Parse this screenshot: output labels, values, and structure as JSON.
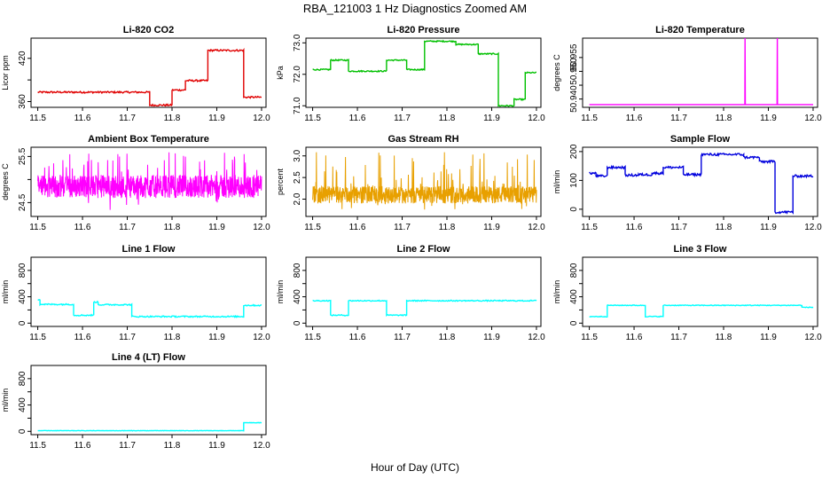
{
  "figure": {
    "title": "RBA_121003  1 Hz Diagnostics Zoomed AM",
    "xlabel": "Hour of Day (UTC)"
  },
  "chart_data": [
    {
      "id": "co2",
      "type": "line",
      "title": "Li-820 CO2",
      "ylabel": "Licor ppm",
      "color": "#e00000",
      "xlim": [
        11.485,
        12.01
      ],
      "ylim": [
        352,
        448
      ],
      "x_ticks": [
        11.5,
        11.6,
        11.7,
        11.8,
        11.9,
        12.0
      ],
      "x_tick_labels": [
        "11.5",
        "11.6",
        "11.7",
        "11.8",
        "11.9",
        "12.0"
      ],
      "y_ticks": [
        360,
        390,
        420
      ],
      "y_tick_labels": [
        "360",
        "",
        "420"
      ],
      "noise": 1.2,
      "segments": [
        [
          11.5,
          11.75,
          373
        ],
        [
          11.75,
          11.8,
          355
        ],
        [
          11.8,
          11.83,
          376
        ],
        [
          11.83,
          11.88,
          389
        ],
        [
          11.88,
          11.96,
          431
        ],
        [
          11.96,
          12.0,
          366
        ]
      ]
    },
    {
      "id": "pressure",
      "type": "line",
      "title": "Li-820 Pressure",
      "ylabel": "kPa",
      "color": "#00c000",
      "xlim": [
        11.485,
        12.01
      ],
      "ylim": [
        70.95,
        73.15
      ],
      "x_ticks": [
        11.5,
        11.6,
        11.7,
        11.8,
        11.9,
        12.0
      ],
      "x_tick_labels": [
        "11.5",
        "11.6",
        "11.7",
        "11.8",
        "11.9",
        "12.0"
      ],
      "y_ticks": [
        71.0,
        72.0,
        73.0
      ],
      "y_tick_labels": [
        "71.0",
        "72.0",
        "73.0"
      ],
      "noise": 0.02,
      "segments": [
        [
          11.5,
          11.54,
          72.15
        ],
        [
          11.54,
          11.58,
          72.45
        ],
        [
          11.58,
          11.665,
          72.1
        ],
        [
          11.665,
          11.71,
          72.45
        ],
        [
          11.71,
          11.75,
          72.15
        ],
        [
          11.75,
          11.82,
          73.05
        ],
        [
          11.82,
          11.87,
          72.95
        ],
        [
          11.87,
          11.915,
          72.65
        ],
        [
          11.915,
          11.95,
          71.0
        ],
        [
          11.95,
          11.975,
          71.2
        ],
        [
          11.975,
          12.0,
          72.05
        ]
      ]
    },
    {
      "id": "licor_temp",
      "type": "line",
      "title": "Li-820 Temperature",
      "ylabel": "degrees C",
      "color": "#ff00ff",
      "xlim": [
        11.485,
        12.01
      ],
      "ylim": [
        50.937,
        50.962
      ],
      "x_ticks": [
        11.5,
        11.6,
        11.7,
        11.8,
        11.9,
        12.0
      ],
      "x_tick_labels": [
        "11.5",
        "11.6",
        "11.7",
        "11.8",
        "11.9",
        "12.0"
      ],
      "y_ticks": [
        50.94,
        50.945,
        50.95,
        50.955
      ],
      "y_tick_labels": [
        "50.940",
        "",
        "50.950",
        "50.955"
      ],
      "baseline": 50.938,
      "spikes": [
        11.848,
        11.92
      ],
      "spike_top": 50.962
    },
    {
      "id": "box_temp",
      "type": "line",
      "title": "Ambient Box Temperature",
      "ylabel": "degrees C",
      "color": "#ff00ff",
      "xlim": [
        11.485,
        12.01
      ],
      "ylim": [
        24.2,
        25.7
      ],
      "x_ticks": [
        11.5,
        11.6,
        11.7,
        11.8,
        11.9,
        12.0
      ],
      "x_tick_labels": [
        "11.5",
        "11.6",
        "11.7",
        "11.8",
        "11.9",
        "12.0"
      ],
      "y_ticks": [
        24.5,
        25.0,
        25.5
      ],
      "y_tick_labels": [
        "24.5",
        "",
        "25.5"
      ],
      "noisy": {
        "center": 24.85,
        "spread": 0.25,
        "max": 25.6,
        "min": 24.3
      }
    },
    {
      "id": "rh",
      "type": "line",
      "title": "Gas Stream RH",
      "ylabel": "percent",
      "color": "#e8a000",
      "xlim": [
        11.485,
        12.01
      ],
      "ylim": [
        1.6,
        3.2
      ],
      "x_ticks": [
        11.5,
        11.6,
        11.7,
        11.8,
        11.9,
        12.0
      ],
      "x_tick_labels": [
        "11.5",
        "11.6",
        "11.7",
        "11.8",
        "11.9",
        "12.0"
      ],
      "y_ticks": [
        2.0,
        2.5,
        3.0
      ],
      "y_tick_labels": [
        "2.0",
        "2.5",
        "3.0"
      ],
      "noisy": {
        "center": 2.1,
        "spread": 0.2,
        "max": 3.1,
        "min": 1.75
      }
    },
    {
      "id": "sample_flow",
      "type": "line",
      "title": "Sample Flow",
      "ylabel": "ml/min",
      "color": "#0000dd",
      "xlim": [
        11.485,
        12.01
      ],
      "ylim": [
        -25,
        215
      ],
      "x_ticks": [
        11.5,
        11.6,
        11.7,
        11.8,
        11.9,
        12.0
      ],
      "x_tick_labels": [
        "11.5",
        "11.6",
        "11.7",
        "11.8",
        "11.9",
        "12.0"
      ],
      "y_ticks": [
        0,
        100,
        200
      ],
      "y_tick_labels": [
        "0",
        "100",
        "200"
      ],
      "noise": 4,
      "segments": [
        [
          11.5,
          11.515,
          125
        ],
        [
          11.515,
          11.54,
          115
        ],
        [
          11.54,
          11.58,
          145
        ],
        [
          11.58,
          11.61,
          118
        ],
        [
          11.61,
          11.64,
          120
        ],
        [
          11.64,
          11.665,
          125
        ],
        [
          11.665,
          11.71,
          145
        ],
        [
          11.71,
          11.75,
          120
        ],
        [
          11.75,
          11.845,
          190
        ],
        [
          11.845,
          11.88,
          180
        ],
        [
          11.88,
          11.915,
          165
        ],
        [
          11.915,
          11.955,
          -10
        ],
        [
          11.955,
          12.0,
          115
        ]
      ]
    },
    {
      "id": "line1",
      "type": "line",
      "title": "Line 1 Flow",
      "ylabel": "ml/min",
      "color": "#00ffff",
      "xlim": [
        11.485,
        12.01
      ],
      "ylim": [
        -50,
        1000
      ],
      "x_ticks": [
        11.5,
        11.6,
        11.7,
        11.8,
        11.9,
        12.0
      ],
      "x_tick_labels": [
        "11.5",
        "11.6",
        "11.7",
        "11.8",
        "11.9",
        "12.0"
      ],
      "y_ticks": [
        0,
        200,
        400,
        600,
        800
      ],
      "y_tick_labels": [
        "0",
        "",
        "400",
        "",
        "800"
      ],
      "noise": 10,
      "segments": [
        [
          11.5,
          11.505,
          360
        ],
        [
          11.505,
          11.58,
          285
        ],
        [
          11.58,
          11.625,
          120
        ],
        [
          11.625,
          11.635,
          320
        ],
        [
          11.635,
          11.71,
          280
        ],
        [
          11.71,
          11.96,
          100
        ],
        [
          11.96,
          12.0,
          270
        ]
      ]
    },
    {
      "id": "line2",
      "type": "line",
      "title": "Line 2 Flow",
      "ylabel": "ml/min",
      "color": "#00ffff",
      "xlim": [
        11.485,
        12.01
      ],
      "ylim": [
        -50,
        1000
      ],
      "x_ticks": [
        11.5,
        11.6,
        11.7,
        11.8,
        11.9,
        12.0
      ],
      "x_tick_labels": [
        "11.5",
        "11.6",
        "11.7",
        "11.8",
        "11.9",
        "12.0"
      ],
      "y_ticks": [
        0,
        200,
        400,
        600,
        800
      ],
      "y_tick_labels": [
        "0",
        "",
        "400",
        "",
        "800"
      ],
      "noise": 8,
      "segments": [
        [
          11.5,
          11.54,
          340
        ],
        [
          11.54,
          11.58,
          120
        ],
        [
          11.58,
          11.665,
          340
        ],
        [
          11.665,
          11.71,
          120
        ],
        [
          11.71,
          12.0,
          340
        ]
      ]
    },
    {
      "id": "line3",
      "type": "line",
      "title": "Line 3 Flow",
      "ylabel": "ml/min",
      "color": "#00ffff",
      "xlim": [
        11.485,
        12.01
      ],
      "ylim": [
        -50,
        1000
      ],
      "x_ticks": [
        11.5,
        11.6,
        11.7,
        11.8,
        11.9,
        12.0
      ],
      "x_tick_labels": [
        "11.5",
        "11.6",
        "11.7",
        "11.8",
        "11.9",
        "12.0"
      ],
      "y_ticks": [
        0,
        200,
        400,
        600,
        800
      ],
      "y_tick_labels": [
        "0",
        "",
        "400",
        "",
        "800"
      ],
      "noise": 6,
      "segments": [
        [
          11.5,
          11.54,
          100
        ],
        [
          11.54,
          11.625,
          270
        ],
        [
          11.625,
          11.665,
          100
        ],
        [
          11.665,
          11.975,
          270
        ],
        [
          11.975,
          12.0,
          240
        ]
      ]
    },
    {
      "id": "line4",
      "type": "line",
      "title": "Line 4 (LT) Flow",
      "ylabel": "ml/min",
      "color": "#00ffff",
      "xlim": [
        11.485,
        12.01
      ],
      "ylim": [
        -50,
        1000
      ],
      "x_ticks": [
        11.5,
        11.6,
        11.7,
        11.8,
        11.9,
        12.0
      ],
      "x_tick_labels": [
        "11.5",
        "11.6",
        "11.7",
        "11.8",
        "11.9",
        "12.0"
      ],
      "y_ticks": [
        0,
        200,
        400,
        600,
        800
      ],
      "y_tick_labels": [
        "0",
        "",
        "400",
        "",
        "800"
      ],
      "noise": 3,
      "segments": [
        [
          11.5,
          11.96,
          10
        ],
        [
          11.96,
          12.0,
          130
        ]
      ]
    }
  ]
}
